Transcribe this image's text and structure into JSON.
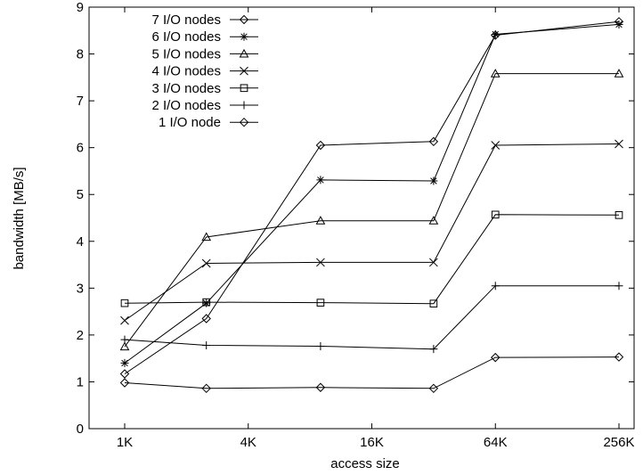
{
  "chart_data": {
    "type": "line",
    "title": "",
    "xlabel": "access size",
    "ylabel": "bandwidth [MB/s]",
    "x": [
      1,
      2.5,
      9,
      32,
      64,
      256
    ],
    "x_unit": "K",
    "x_scale": "log2",
    "xlim": [
      1,
      256
    ],
    "xticks": [
      1,
      4,
      16,
      64,
      256
    ],
    "xtick_labels": [
      "1K",
      "4K",
      "16K",
      "64K",
      "256K"
    ],
    "ylim": [
      0,
      9
    ],
    "yticks": [
      0,
      1,
      2,
      3,
      4,
      5,
      6,
      7,
      8,
      9
    ],
    "ytick_labels": [
      "0",
      "1",
      "2",
      "3",
      "4",
      "5",
      "6",
      "7",
      "8",
      "9"
    ],
    "grid": false,
    "legend": "top-left",
    "series": [
      {
        "name": "7 I/O nodes",
        "marker": "diamond",
        "values": [
          1.17,
          2.35,
          6.05,
          6.13,
          8.4,
          8.69
        ]
      },
      {
        "name": "6 I/O nodes",
        "marker": "asterisk",
        "values": [
          1.4,
          2.68,
          5.31,
          5.29,
          8.42,
          8.63
        ]
      },
      {
        "name": "5 I/O nodes",
        "marker": "triangle",
        "values": [
          1.75,
          4.09,
          4.44,
          4.44,
          7.58,
          7.58
        ]
      },
      {
        "name": "4 I/O nodes",
        "marker": "x",
        "values": [
          2.31,
          3.53,
          3.55,
          3.55,
          6.05,
          6.08
        ]
      },
      {
        "name": "3 I/O nodes",
        "marker": "square",
        "values": [
          2.68,
          2.7,
          2.69,
          2.67,
          4.57,
          4.56
        ]
      },
      {
        "name": "2 I/O nodes",
        "marker": "plus",
        "values": [
          1.9,
          1.78,
          1.76,
          1.7,
          3.05,
          3.05
        ]
      },
      {
        "name": "1 I/O node",
        "marker": "diamond",
        "values": [
          0.98,
          0.86,
          0.88,
          0.86,
          1.52,
          1.53
        ]
      }
    ]
  }
}
